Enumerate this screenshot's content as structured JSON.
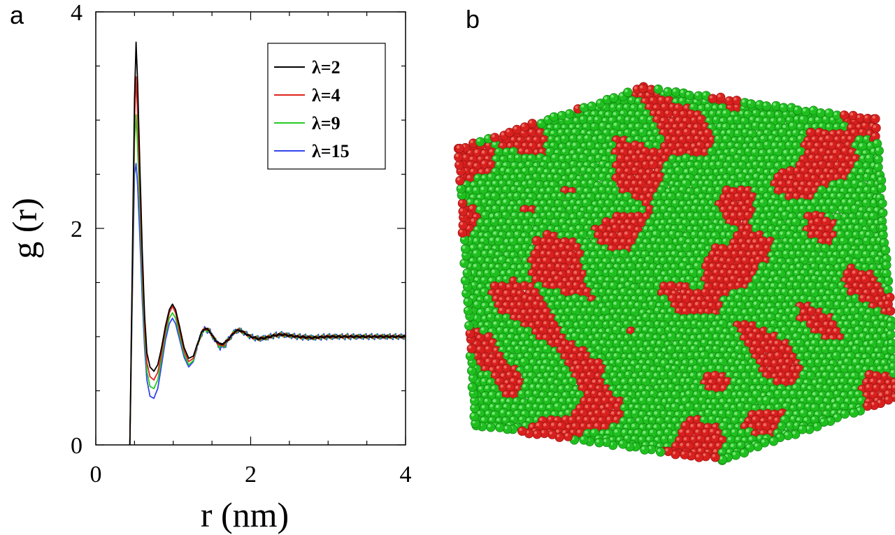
{
  "panels": {
    "a": "a",
    "b": "b"
  },
  "chart_data": {
    "type": "line",
    "title": "",
    "xlabel": "r (nm)",
    "ylabel": "g (r)",
    "xlim": [
      0,
      4
    ],
    "ylim": [
      0,
      4
    ],
    "x_ticks": [
      0,
      2,
      4
    ],
    "y_ticks": [
      0,
      2,
      4
    ],
    "x_tick_labels": [
      "0",
      "2",
      "4"
    ],
    "y_tick_labels": [
      "0",
      "2",
      "4"
    ],
    "grid": false,
    "legend_position": "top-right",
    "series": [
      {
        "name": "λ=2",
        "color": "#000000",
        "x": [
          0.44,
          0.47,
          0.5,
          0.52,
          0.54,
          0.57,
          0.6,
          0.63,
          0.66,
          0.7,
          0.75,
          0.8,
          0.85,
          0.9,
          0.95,
          0.99,
          1.03,
          1.08,
          1.14,
          1.2,
          1.26,
          1.31,
          1.36,
          1.41,
          1.47,
          1.53,
          1.6,
          1.66,
          1.73,
          1.8,
          1.86,
          1.93,
          2.0,
          2.1,
          2.2,
          2.3,
          2.4,
          2.5,
          2.6,
          2.8,
          3.0,
          3.2,
          3.4,
          3.6,
          3.8,
          4.0
        ],
        "y": [
          0.0,
          1.6,
          3.2,
          3.72,
          3.35,
          2.55,
          1.8,
          1.2,
          0.85,
          0.72,
          0.68,
          0.74,
          0.9,
          1.1,
          1.25,
          1.3,
          1.25,
          1.1,
          0.9,
          0.8,
          0.82,
          0.93,
          1.03,
          1.08,
          1.05,
          0.98,
          0.93,
          0.94,
          0.99,
          1.05,
          1.06,
          1.03,
          1.0,
          0.98,
          0.99,
          1.01,
          1.02,
          1.01,
          1.0,
          0.99,
          1.0,
          1.0,
          1.0,
          1.0,
          1.0,
          1.0
        ]
      },
      {
        "name": "λ=4",
        "color": "#e0241c",
        "x": [
          0.44,
          0.47,
          0.5,
          0.52,
          0.54,
          0.57,
          0.6,
          0.63,
          0.66,
          0.7,
          0.75,
          0.8,
          0.85,
          0.9,
          0.95,
          0.99,
          1.03,
          1.08,
          1.14,
          1.2,
          1.26,
          1.31,
          1.36,
          1.41,
          1.47,
          1.53,
          1.6,
          1.66,
          1.73,
          1.8,
          1.86,
          1.93,
          2.0,
          2.1,
          2.2,
          2.3,
          2.4,
          2.5,
          2.6,
          2.8,
          3.0,
          3.2,
          3.4,
          3.6,
          3.8,
          4.0
        ],
        "y": [
          0.0,
          1.5,
          3.0,
          3.4,
          3.05,
          2.35,
          1.65,
          1.1,
          0.76,
          0.63,
          0.6,
          0.67,
          0.85,
          1.06,
          1.22,
          1.28,
          1.22,
          1.06,
          0.87,
          0.77,
          0.8,
          0.92,
          1.03,
          1.08,
          1.05,
          0.98,
          0.92,
          0.93,
          0.99,
          1.05,
          1.06,
          1.03,
          1.0,
          0.98,
          0.99,
          1.01,
          1.02,
          1.01,
          1.0,
          0.99,
          1.0,
          1.0,
          1.0,
          1.0,
          1.0,
          1.0
        ]
      },
      {
        "name": "λ=9",
        "color": "#22cc22",
        "x": [
          0.44,
          0.47,
          0.5,
          0.52,
          0.54,
          0.57,
          0.6,
          0.63,
          0.66,
          0.7,
          0.75,
          0.8,
          0.85,
          0.9,
          0.95,
          0.99,
          1.03,
          1.08,
          1.14,
          1.2,
          1.26,
          1.31,
          1.36,
          1.41,
          1.47,
          1.53,
          1.6,
          1.66,
          1.73,
          1.8,
          1.86,
          1.93,
          2.0,
          2.1,
          2.2,
          2.3,
          2.4,
          2.5,
          2.6,
          2.8,
          3.0,
          3.2,
          3.4,
          3.6,
          3.8,
          4.0
        ],
        "y": [
          0.0,
          1.4,
          2.8,
          3.05,
          2.75,
          2.15,
          1.5,
          1.0,
          0.68,
          0.54,
          0.52,
          0.6,
          0.8,
          1.02,
          1.17,
          1.22,
          1.17,
          1.02,
          0.84,
          0.74,
          0.78,
          0.91,
          1.02,
          1.07,
          1.05,
          0.98,
          0.91,
          0.92,
          0.99,
          1.05,
          1.06,
          1.03,
          1.0,
          0.98,
          0.99,
          1.01,
          1.02,
          1.01,
          1.0,
          0.99,
          1.0,
          1.0,
          1.0,
          1.0,
          1.0,
          1.0
        ]
      },
      {
        "name": "λ=15",
        "color": "#3344ee",
        "x": [
          0.44,
          0.47,
          0.5,
          0.52,
          0.54,
          0.57,
          0.6,
          0.63,
          0.66,
          0.7,
          0.75,
          0.8,
          0.85,
          0.9,
          0.95,
          0.99,
          1.03,
          1.08,
          1.14,
          1.2,
          1.26,
          1.31,
          1.36,
          1.41,
          1.47,
          1.53,
          1.6,
          1.66,
          1.73,
          1.8,
          1.86,
          1.93,
          2.0,
          2.1,
          2.2,
          2.3,
          2.4,
          2.5,
          2.6,
          2.8,
          3.0,
          3.2,
          3.4,
          3.6,
          3.8,
          4.0
        ],
        "y": [
          0.0,
          1.3,
          2.5,
          2.6,
          2.4,
          1.9,
          1.35,
          0.9,
          0.6,
          0.45,
          0.43,
          0.52,
          0.74,
          0.97,
          1.12,
          1.17,
          1.12,
          0.98,
          0.81,
          0.72,
          0.77,
          0.9,
          1.02,
          1.07,
          1.05,
          0.98,
          0.9,
          0.91,
          0.99,
          1.05,
          1.06,
          1.03,
          1.0,
          0.98,
          0.99,
          1.01,
          1.02,
          1.01,
          1.0,
          0.99,
          1.0,
          1.0,
          1.0,
          1.0,
          1.0,
          1.0
        ]
      }
    ]
  },
  "snapshot": {
    "colors": {
      "species_a": "#1fbf1f",
      "species_b": "#d8201e"
    }
  }
}
